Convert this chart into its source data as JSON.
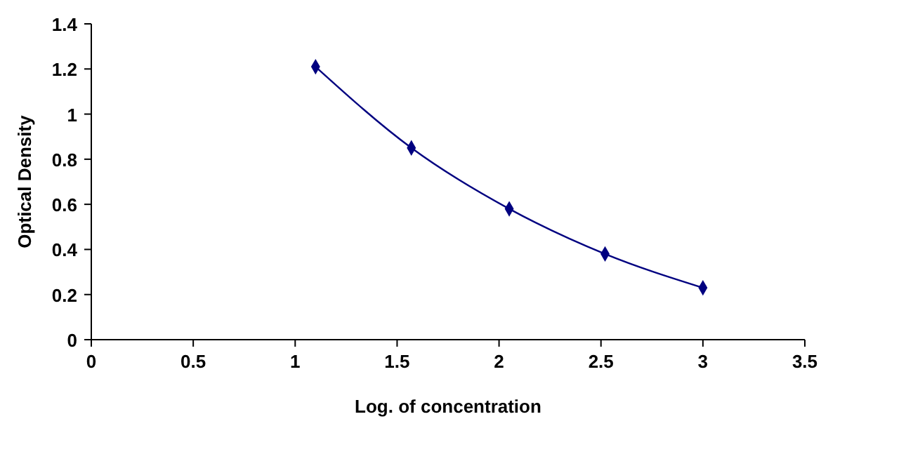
{
  "chart_data": {
    "type": "line",
    "xlabel": "Log. of concentration",
    "ylabel": "Optical Density",
    "x": [
      1.1,
      1.57,
      2.05,
      2.52,
      3.0
    ],
    "series": [
      {
        "color": "#000080",
        "values": [
          1.21,
          0.85,
          0.58,
          0.38,
          0.23
        ]
      }
    ],
    "xlim": [
      0,
      3.5
    ],
    "xticks": [
      0,
      0.5,
      1,
      1.5,
      2,
      2.5,
      3,
      3.5
    ],
    "ylim": [
      0,
      1.4
    ],
    "yticks": [
      0,
      0.2,
      0.4,
      0.6,
      0.8,
      1,
      1.2,
      1.4
    ],
    "grid": false,
    "marker": "diamond",
    "line_style": "solid"
  }
}
